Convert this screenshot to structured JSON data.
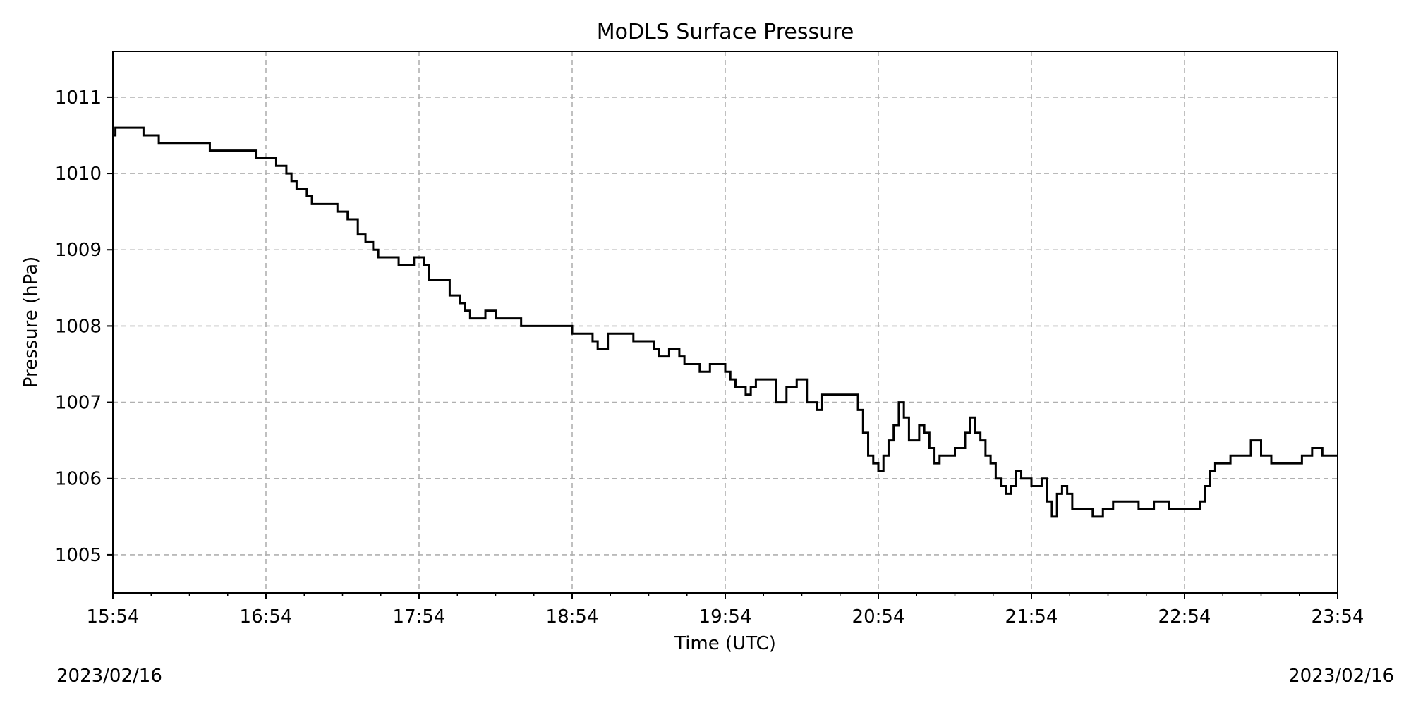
{
  "chart_data": {
    "type": "line",
    "title": "MoDLS Surface Pressure",
    "xlabel": "Time (UTC)",
    "ylabel": "Pressure (hPa)",
    "x_range": [
      "15:54",
      "23:54"
    ],
    "x_ticks": [
      "15:54",
      "16:54",
      "17:54",
      "18:54",
      "19:54",
      "20:54",
      "21:54",
      "22:54",
      "23:54"
    ],
    "y_ticks": [
      1005,
      1006,
      1007,
      1008,
      1009,
      1010,
      1011
    ],
    "ylim": [
      1004.5,
      1011.6
    ],
    "grid": true,
    "date_left": "2023/02/16",
    "date_right": "2023/02/16",
    "series": [
      {
        "style": "step",
        "color": "#000000",
        "x": [
          "15:54",
          "15:55",
          "15:56",
          "15:57",
          "15:58",
          "16:06",
          "16:08",
          "16:12",
          "16:13",
          "16:14",
          "16:16",
          "16:18",
          "16:28",
          "16:32",
          "16:33",
          "16:36",
          "16:38",
          "16:46",
          "16:50",
          "16:51",
          "16:54",
          "16:58",
          "17:02",
          "17:04",
          "17:06",
          "17:10",
          "17:12",
          "17:22",
          "17:26",
          "17:30",
          "17:33",
          "17:36",
          "17:38",
          "17:40",
          "17:42",
          "17:46",
          "17:52",
          "17:56",
          "17:58",
          "18:06",
          "18:10",
          "18:12",
          "18:14",
          "18:16",
          "18:20",
          "18:24",
          "18:28",
          "18:31",
          "18:34",
          "18:46",
          "18:54",
          "19:02",
          "19:04",
          "19:06",
          "19:08",
          "19:18",
          "19:26",
          "19:28",
          "19:32",
          "19:36",
          "19:38",
          "19:40",
          "19:44",
          "19:48",
          "19:50",
          "19:54",
          "19:56",
          "19:58",
          "20:00",
          "20:02",
          "20:04",
          "20:06",
          "20:14",
          "20:18",
          "20:22",
          "20:26",
          "20:30",
          "20:32",
          "20:38",
          "20:40",
          "20:42",
          "20:46",
          "20:48",
          "20:50",
          "20:52",
          "20:54",
          "20:56",
          "20:58",
          "21:00",
          "21:02",
          "21:04",
          "21:06",
          "21:08",
          "21:10",
          "21:12",
          "21:14",
          "21:16",
          "21:18",
          "21:22",
          "21:24",
          "21:26",
          "21:28",
          "21:30",
          "21:32",
          "21:34",
          "21:36",
          "21:38",
          "21:40",
          "21:42",
          "21:44",
          "21:46",
          "21:48",
          "21:50",
          "21:54",
          "21:56",
          "21:58",
          "22:00",
          "22:02",
          "22:04",
          "22:06",
          "22:08",
          "22:10",
          "22:12",
          "22:14",
          "22:16",
          "22:18",
          "22:22",
          "22:26",
          "22:30",
          "22:36",
          "22:42",
          "22:48",
          "22:54",
          "22:56",
          "22:58",
          "23:00",
          "23:02",
          "23:04",
          "23:06",
          "23:12",
          "23:16",
          "23:20",
          "23:22",
          "23:24",
          "23:26",
          "23:28",
          "23:34",
          "23:40",
          "23:44",
          "23:48",
          "23:54"
        ],
        "values": [
          1010.5,
          1010.6,
          1010.6,
          1010.6,
          1010.6,
          1010.5,
          1010.5,
          1010.4,
          1010.4,
          1010.4,
          1010.4,
          1010.4,
          1010.4,
          1010.3,
          1010.3,
          1010.3,
          1010.3,
          1010.3,
          1010.2,
          1010.2,
          1010.2,
          1010.1,
          1010.0,
          1009.9,
          1009.8,
          1009.7,
          1009.6,
          1009.5,
          1009.4,
          1009.2,
          1009.1,
          1009.0,
          1008.9,
          1008.9,
          1008.9,
          1008.8,
          1008.9,
          1008.8,
          1008.6,
          1008.4,
          1008.3,
          1008.2,
          1008.1,
          1008.1,
          1008.2,
          1008.1,
          1008.1,
          1008.1,
          1008.0,
          1008.0,
          1007.9,
          1007.8,
          1007.7,
          1007.7,
          1007.9,
          1007.8,
          1007.7,
          1007.6,
          1007.7,
          1007.6,
          1007.5,
          1007.5,
          1007.4,
          1007.5,
          1007.5,
          1007.4,
          1007.3,
          1007.2,
          1007.2,
          1007.1,
          1007.2,
          1007.3,
          1007.0,
          1007.2,
          1007.3,
          1007.0,
          1006.9,
          1007.1,
          1007.1,
          1007.1,
          1007.1,
          1006.9,
          1006.6,
          1006.3,
          1006.2,
          1006.1,
          1006.3,
          1006.5,
          1006.7,
          1007.0,
          1006.8,
          1006.5,
          1006.5,
          1006.7,
          1006.6,
          1006.4,
          1006.2,
          1006.3,
          1006.3,
          1006.4,
          1006.4,
          1006.6,
          1006.8,
          1006.6,
          1006.5,
          1006.3,
          1006.2,
          1006.0,
          1005.9,
          1005.8,
          1005.9,
          1006.1,
          1006.0,
          1005.9,
          1005.9,
          1006.0,
          1005.7,
          1005.5,
          1005.8,
          1005.9,
          1005.8,
          1005.6,
          1005.6,
          1005.6,
          1005.6,
          1005.5,
          1005.6,
          1005.7,
          1005.7,
          1005.6,
          1005.7,
          1005.6,
          1005.6,
          1005.6,
          1005.6,
          1005.7,
          1005.9,
          1006.1,
          1006.2,
          1006.3,
          1006.3,
          1006.5,
          1006.5,
          1006.3,
          1006.3,
          1006.2,
          1006.2,
          1006.3,
          1006.4,
          1006.3,
          1006.3
        ]
      }
    ]
  }
}
